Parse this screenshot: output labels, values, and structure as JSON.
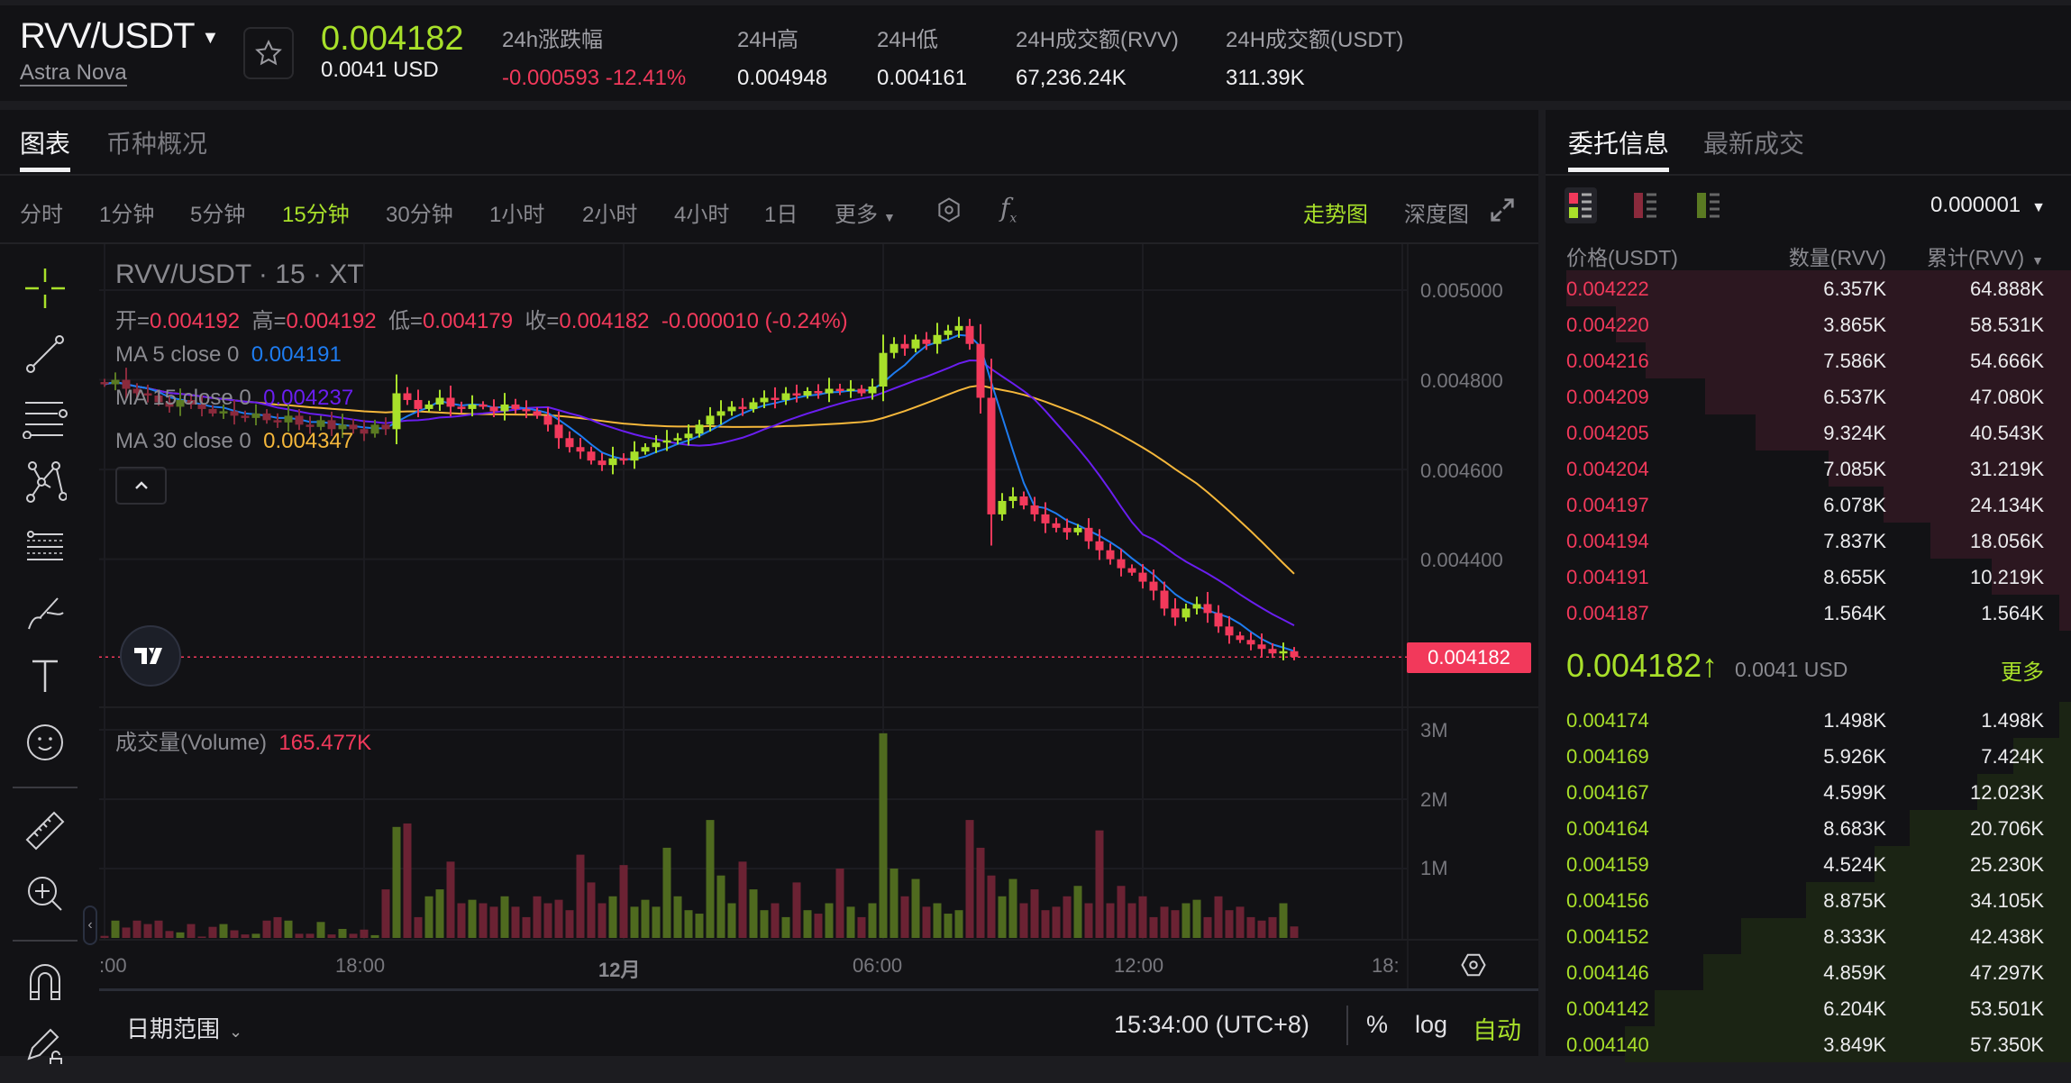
{
  "header": {
    "pair": "RVV/USDT",
    "name": "Astra Nova",
    "last_price": "0.004182",
    "last_price_usd": "0.0041 USD",
    "stats": [
      {
        "label": "24h涨跌幅",
        "value": "-0.000593 -12.41%"
      },
      {
        "label": "24H高",
        "value": "0.004948"
      },
      {
        "label": "24H低",
        "value": "0.004161"
      },
      {
        "label": "24H成交额(RVV)",
        "value": "67,236.24K"
      },
      {
        "label": "24H成交额(USDT)",
        "value": "311.39K"
      }
    ]
  },
  "tabs": {
    "chart": "图表",
    "overview": "币种概况"
  },
  "timeframes": [
    "分时",
    "1分钟",
    "5分钟",
    "15分钟",
    "30分钟",
    "1小时",
    "2小时",
    "4小时",
    "1日",
    "更多"
  ],
  "active_timeframe": "15分钟",
  "view_modes": {
    "trend": "走势图",
    "depth": "深度图"
  },
  "chart": {
    "symbol_title": "RVV/USDT · 15 · XT",
    "ohlc": {
      "open_label": "开=",
      "open": "0.004192",
      "high_label": "高=",
      "high": "0.004192",
      "low_label": "低=",
      "low": "0.004179",
      "close_label": "收=",
      "close": "0.004182",
      "change": "-0.000010 (-0.24%)"
    },
    "ma": [
      {
        "label": "MA 5 close 0",
        "value": "0.004191",
        "color": "#1e7cf0"
      },
      {
        "label": "MA 15 close 0",
        "value": "0.004237",
        "color": "#6a1ef0"
      },
      {
        "label": "MA 30 close 0",
        "value": "0.004347",
        "color": "#f5b73b"
      }
    ],
    "price_ticks": [
      "0.005000",
      "0.004800",
      "0.004600",
      "0.004400"
    ],
    "current_price_label": "0.004182",
    "volume_label": "成交量(Volume)",
    "volume_value": "165.477K",
    "volume_ticks": [
      "3M",
      "2M",
      "1M"
    ],
    "time_ticks": [
      ":00",
      "18:00",
      "12月",
      "06:00",
      "12:00",
      "18:"
    ],
    "colors": {
      "up": "#a8e02a",
      "down": "#f2395b",
      "up_volume": "#4f6a1f",
      "down_volume": "#6b2233"
    },
    "chart_data": {
      "type": "candlestick",
      "interval": "15分钟",
      "x_start": "11-30 12:00",
      "close": [
        0.00479,
        0.0048,
        0.00478,
        0.00477,
        0.004765,
        0.00475,
        0.00474,
        0.004755,
        0.004745,
        0.004735,
        0.004725,
        0.00473,
        0.00472,
        0.004715,
        0.004725,
        0.00471,
        0.004705,
        0.00472,
        0.0047,
        0.004695,
        0.00471,
        0.00469,
        0.0047,
        0.00469,
        0.00468,
        0.0047,
        0.00469,
        0.00477,
        0.004755,
        0.004735,
        0.004745,
        0.00476,
        0.00474,
        0.004735,
        0.004745,
        0.00474,
        0.00473,
        0.004745,
        0.004735,
        0.00473,
        0.00472,
        0.0047,
        0.00467,
        0.00465,
        0.00464,
        0.00462,
        0.00461,
        0.004625,
        0.00462,
        0.00464,
        0.00465,
        0.00466,
        0.004665,
        0.00467,
        0.00468,
        0.0047,
        0.00472,
        0.00473,
        0.00474,
        0.004735,
        0.00475,
        0.00476,
        0.004755,
        0.00477,
        0.004765,
        0.004775,
        0.00477,
        0.00478,
        0.004775,
        0.00478,
        0.00477,
        0.004785,
        0.00486,
        0.00488,
        0.00487,
        0.00489,
        0.00488,
        0.0049,
        0.00491,
        0.00492,
        0.00488,
        0.00476,
        0.0045,
        0.00453,
        0.00454,
        0.00452,
        0.0045,
        0.00448,
        0.00447,
        0.00446,
        0.00447,
        0.00444,
        0.00442,
        0.0044,
        0.00438,
        0.00437,
        0.00435,
        0.00433,
        0.00429,
        0.00427,
        0.00429,
        0.0043,
        0.00428,
        0.00425,
        0.00423,
        0.00422,
        0.00421,
        0.0042,
        0.00419,
        0.004195,
        0.004182
      ],
      "volume_k": [
        30,
        250,
        150,
        250,
        200,
        250,
        100,
        80,
        200,
        20,
        160,
        200,
        110,
        50,
        60,
        250,
        300,
        250,
        60,
        60,
        230,
        50,
        130,
        60,
        120,
        40,
        700,
        1600,
        1650,
        300,
        600,
        700,
        1100,
        500,
        550,
        500,
        450,
        600,
        450,
        300,
        600,
        500,
        550,
        400,
        1200,
        800,
        500,
        600,
        1050,
        450,
        550,
        450,
        1300,
        600,
        400,
        350,
        1700,
        900,
        500,
        1100,
        700,
        400,
        500,
        300,
        800,
        400,
        350,
        500,
        1000,
        450,
        300,
        500,
        2950,
        1000,
        600,
        850,
        450,
        500,
        350,
        400,
        1700,
        1300,
        900,
        600,
        850,
        500,
        700,
        400,
        450,
        600,
        750,
        500,
        1550,
        500,
        750,
        500,
        600,
        300,
        450,
        400,
        500,
        550,
        300,
        600,
        400,
        450,
        300,
        250,
        300,
        500,
        165.477
      ],
      "ylim": [
        0.00413,
        0.00503
      ],
      "volume_ylim_m": [
        0,
        3.5
      ]
    }
  },
  "bottom_bar": {
    "date_range": "日期范围",
    "time": "15:34:00 (UTC+8)",
    "percent": "%",
    "log": "log",
    "auto": "自动"
  },
  "orderbook": {
    "tabs": {
      "orders": "委托信息",
      "trades": "最新成交"
    },
    "precision": "0.000001",
    "headers": {
      "price": "价格(USDT)",
      "qty": "数量(RVV)",
      "cum": "累计(RVV)"
    },
    "asks": [
      {
        "price": "0.004222",
        "qty": "6.357K",
        "cum": "64.888K"
      },
      {
        "price": "0.004220",
        "qty": "3.865K",
        "cum": "58.531K"
      },
      {
        "price": "0.004216",
        "qty": "7.586K",
        "cum": "54.666K"
      },
      {
        "price": "0.004209",
        "qty": "6.537K",
        "cum": "47.080K"
      },
      {
        "price": "0.004205",
        "qty": "9.324K",
        "cum": "40.543K"
      },
      {
        "price": "0.004204",
        "qty": "7.085K",
        "cum": "31.219K"
      },
      {
        "price": "0.004197",
        "qty": "6.078K",
        "cum": "24.134K"
      },
      {
        "price": "0.004194",
        "qty": "7.837K",
        "cum": "18.056K"
      },
      {
        "price": "0.004191",
        "qty": "8.655K",
        "cum": "10.219K"
      },
      {
        "price": "0.004187",
        "qty": "1.564K",
        "cum": "1.564K"
      }
    ],
    "mid": {
      "price": "0.004182↑",
      "usd": "0.0041 USD",
      "more": "更多"
    },
    "bids": [
      {
        "price": "0.004174",
        "qty": "1.498K",
        "cum": "1.498K"
      },
      {
        "price": "0.004169",
        "qty": "5.926K",
        "cum": "7.424K"
      },
      {
        "price": "0.004167",
        "qty": "4.599K",
        "cum": "12.023K"
      },
      {
        "price": "0.004164",
        "qty": "8.683K",
        "cum": "20.706K"
      },
      {
        "price": "0.004159",
        "qty": "4.524K",
        "cum": "25.230K"
      },
      {
        "price": "0.004156",
        "qty": "8.875K",
        "cum": "34.105K"
      },
      {
        "price": "0.004152",
        "qty": "8.333K",
        "cum": "42.438K"
      },
      {
        "price": "0.004146",
        "qty": "4.859K",
        "cum": "47.297K"
      },
      {
        "price": "0.004142",
        "qty": "6.204K",
        "cum": "53.501K"
      },
      {
        "price": "0.004140",
        "qty": "3.849K",
        "cum": "57.350K"
      }
    ]
  }
}
